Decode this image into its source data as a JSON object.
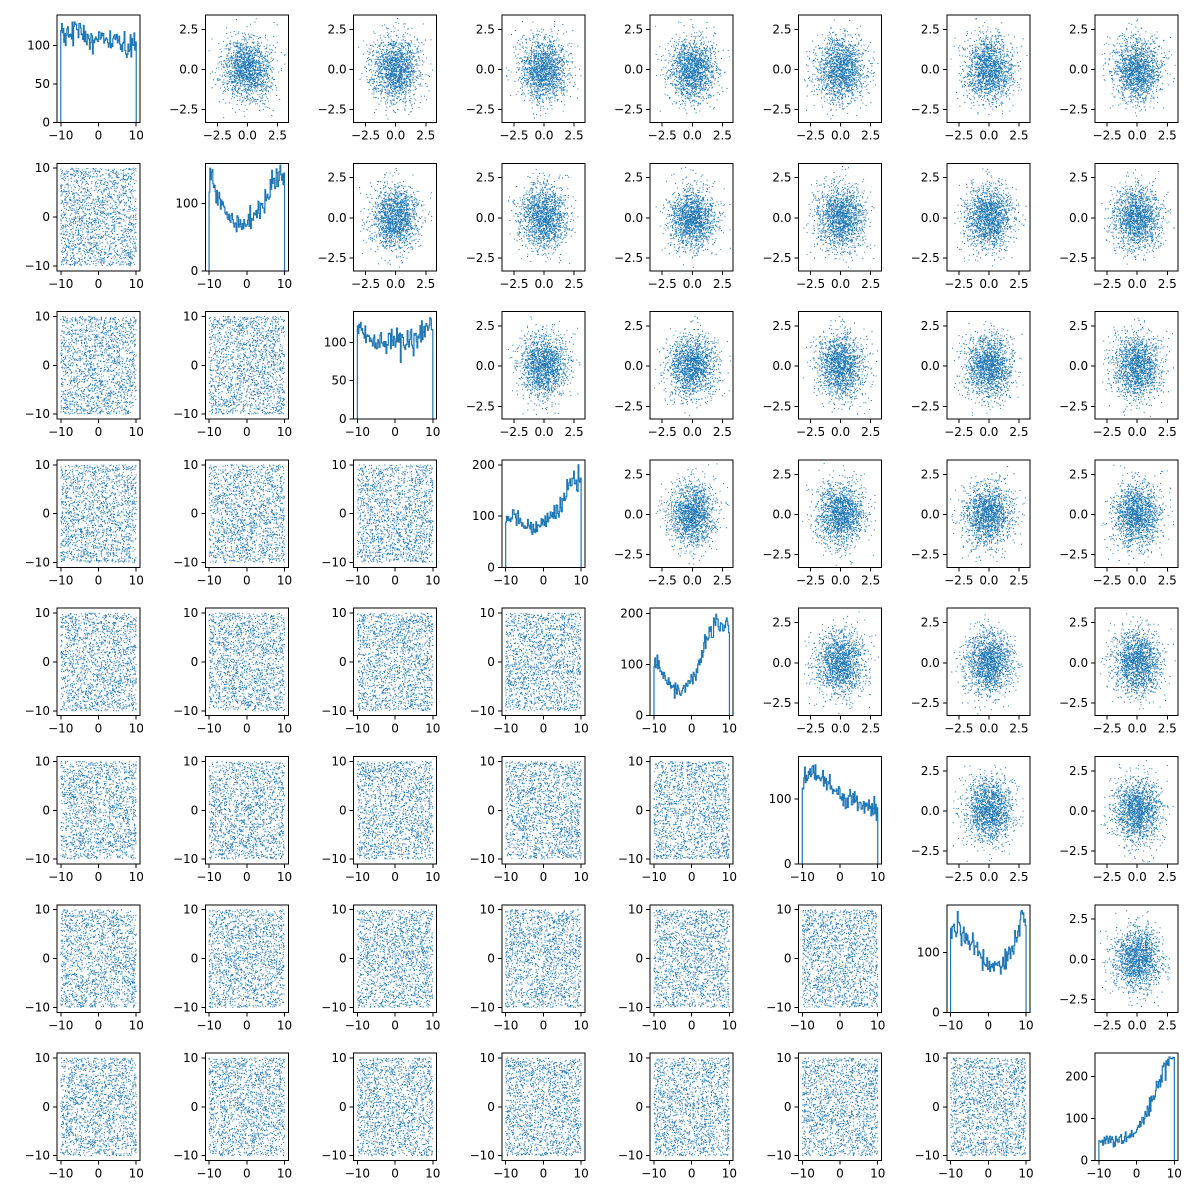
{
  "chart_data": {
    "type": "scatter",
    "layout": "pair-plot-matrix",
    "n_variables": 8,
    "color": "#1f77b4",
    "grid": false,
    "legend": "none",
    "title": "",
    "diagonal": "histogram",
    "upper_triangle": "scatter of standard-normal samples",
    "lower_triangle": "scatter of samples uniform on [-10, 10]",
    "upper_axis": {
      "xlim": [
        -3.5,
        3.4
      ],
      "ylim": [
        -3.3,
        3.4
      ],
      "xticks": [
        -2.5,
        0.0,
        2.5
      ],
      "xtick_labels": [
        "−2.5",
        "0.0",
        "2.5"
      ],
      "yticks": [
        -2.5,
        0.0,
        2.5
      ],
      "ytick_labels": [
        "−2.5",
        "0.0",
        "2.5"
      ]
    },
    "lower_axis": {
      "xlim": [
        -11,
        11
      ],
      "ylim": [
        -11,
        11
      ],
      "xticks": [
        -10,
        0,
        10
      ],
      "xtick_labels": [
        "−10",
        "0",
        "10"
      ],
      "yticks": [
        -10,
        0,
        10
      ],
      "ytick_labels": [
        "−10",
        "0",
        "10"
      ]
    },
    "diagonal_xlim": [
      -11,
      11
    ],
    "diagonal_xticks": [
      -10,
      0,
      10
    ],
    "diagonal_xtick_labels": [
      "−10",
      "0",
      "10"
    ],
    "histograms": [
      {
        "variable": 1,
        "ylim": [
          0,
          140
        ],
        "yticks": [
          0,
          50,
          100
        ],
        "ytick_labels": [
          "0",
          "50",
          "100"
        ],
        "bin_centers": [
          -9,
          -7,
          -5,
          -3,
          -1,
          1,
          3,
          5,
          7,
          9
        ],
        "counts": [
          115,
          122,
          118,
          112,
          108,
          106,
          104,
          102,
          100,
          95
        ]
      },
      {
        "variable": 2,
        "ylim": [
          0,
          160
        ],
        "yticks": [
          0,
          100
        ],
        "ytick_labels": [
          "0",
          "100"
        ],
        "bin_centers": [
          -9,
          -7,
          -5,
          -3,
          -1,
          1,
          3,
          5,
          7,
          9
        ],
        "counts": [
          138,
          95,
          82,
          72,
          68,
          78,
          92,
          105,
          130,
          140
        ]
      },
      {
        "variable": 3,
        "ylim": [
          0,
          140
        ],
        "yticks": [
          0,
          50,
          100
        ],
        "ytick_labels": [
          "0",
          "50",
          "100"
        ],
        "bin_centers": [
          -9,
          -7,
          -5,
          -3,
          -1,
          1,
          3,
          5,
          7,
          9
        ],
        "counts": [
          118,
          105,
          100,
          98,
          102,
          100,
          99,
          102,
          110,
          118
        ]
      },
      {
        "variable": 4,
        "ylim": [
          0,
          210
        ],
        "yticks": [
          0,
          100,
          200
        ],
        "ytick_labels": [
          "0",
          "100",
          "200"
        ],
        "bin_centers": [
          -9,
          -7,
          -5,
          -3,
          -1,
          1,
          3,
          5,
          7,
          9
        ],
        "counts": [
          105,
          95,
          80,
          75,
          80,
          92,
          108,
          125,
          170,
          175
        ]
      },
      {
        "variable": 5,
        "ylim": [
          0,
          210
        ],
        "yticks": [
          0,
          100,
          200
        ],
        "ytick_labels": [
          "0",
          "100",
          "200"
        ],
        "bin_centers": [
          -9,
          -7,
          -5,
          -3,
          -1,
          1,
          3,
          5,
          7,
          9
        ],
        "counts": [
          100,
          75,
          55,
          45,
          62,
          88,
          125,
          160,
          180,
          170
        ]
      },
      {
        "variable": 6,
        "ylim": [
          0,
          165
        ],
        "yticks": [
          0,
          100
        ],
        "ytick_labels": [
          "0",
          "100"
        ],
        "bin_centers": [
          -9,
          -7,
          -5,
          -3,
          -1,
          1,
          3,
          5,
          7,
          9
        ],
        "counts": [
          130,
          138,
          128,
          120,
          112,
          102,
          95,
          90,
          88,
          85
        ]
      },
      {
        "variable": 7,
        "ylim": [
          0,
          180
        ],
        "yticks": [
          0,
          100
        ],
        "ytick_labels": [
          "0",
          "100"
        ],
        "bin_centers": [
          -9,
          -7,
          -5,
          -3,
          -1,
          1,
          3,
          5,
          7,
          9
        ],
        "counts": [
          140,
          130,
          118,
          105,
          85,
          80,
          80,
          92,
          120,
          160
        ]
      },
      {
        "variable": 8,
        "ylim": [
          0,
          255
        ],
        "yticks": [
          0,
          100,
          200
        ],
        "ytick_labels": [
          "0",
          "100",
          "200"
        ],
        "bin_centers": [
          -9,
          -7,
          -5,
          -3,
          -1,
          1,
          3,
          5,
          7,
          9
        ],
        "counts": [
          45,
          48,
          45,
          55,
          62,
          85,
          118,
          165,
          215,
          235
        ]
      }
    ]
  }
}
